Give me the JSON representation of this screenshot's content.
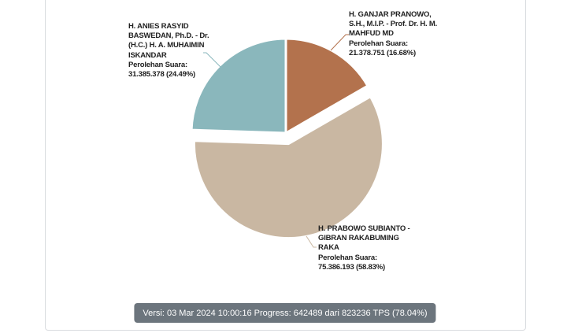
{
  "chart_data": {
    "type": "pie",
    "title": "",
    "legend": "none",
    "start_angle_deg": 0,
    "direction": "clockwise",
    "slices": [
      {
        "name": "H. GANJAR PRANOWO, S.H., M.I.P. - Prof. Dr. H. M. MAHFUD MD",
        "votes": 21378751,
        "pct": 16.68,
        "color": "#b3724d",
        "selected": false
      },
      {
        "name": "H. PRABOWO SUBIANTO - GIBRAN RAKABUMING RAKA",
        "votes": 75386193,
        "pct": 58.83,
        "color": "#c9b7a2",
        "selected": true
      },
      {
        "name": "H. ANIES RASYID BASWEDAN, Ph.D. - Dr. (H.C.) H. A. MUHAIMIN ISKANDAR",
        "votes": 31385378,
        "pct": 24.49,
        "color": "#8ab7bc",
        "selected": false
      }
    ]
  },
  "labels": {
    "anies": {
      "name_lines": [
        "H. ANIES RASYID",
        "BASWEDAN, Ph.D. - Dr.",
        "(H.C.) H. A. MUHAIMIN",
        "ISKANDAR"
      ],
      "votes_label": "Perolehan Suara:",
      "votes_text": "31.385.378 (24.49%)"
    },
    "ganjar": {
      "name_lines": [
        "H. GANJAR PRANOWO,",
        "S.H., M.I.P. - Prof. Dr. H. M.",
        "MAHFUD MD"
      ],
      "votes_label": "Perolehan Suara:",
      "votes_text": "21.378.751 (16.68%)"
    },
    "prabowo": {
      "name_lines": [
        "H. PRABOWO SUBIANTO -",
        "GIBRAN RAKABUMING",
        "RAKA"
      ],
      "votes_label": "Perolehan Suara:",
      "votes_text": "75.386.193 (58.83%)"
    }
  },
  "footer": {
    "status_text": "Versi: 03 Mar 2024 10:00:16 Progress: 642489 dari 823236 TPS (78.04%)"
  },
  "colors": {
    "badge_bg": "#6c757d",
    "badge_text": "#ffffff",
    "card_border": "#d9dcdf",
    "label_text": "#212121",
    "slice_stroke": "#ffffff"
  }
}
